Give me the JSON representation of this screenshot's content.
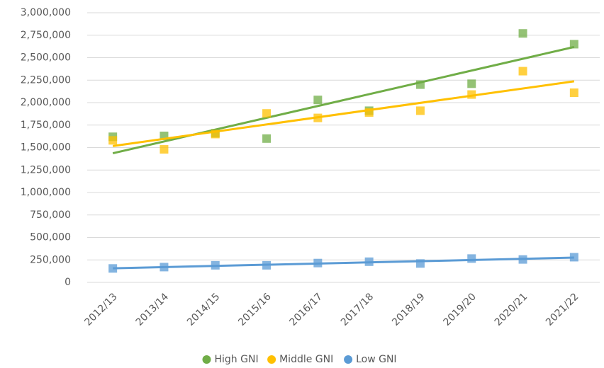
{
  "chart_data": {
    "type": "scatter",
    "categories": [
      "2012/13",
      "2013/14",
      "2014/15",
      "2015/16",
      "2016/17",
      "2017/18",
      "2018/19",
      "2019/20",
      "2020/21",
      "2021/22"
    ],
    "series": [
      {
        "name": "High GNI",
        "color": "#70ad47",
        "values": [
          1620000,
          1630000,
          1660000,
          1600000,
          2030000,
          1910000,
          2200000,
          2210000,
          2770000,
          2650000
        ]
      },
      {
        "name": "Middle GNI",
        "color": "#ffc000",
        "values": [
          1580000,
          1480000,
          1650000,
          1880000,
          1830000,
          1890000,
          1910000,
          2090000,
          2350000,
          2110000
        ]
      },
      {
        "name": "Low GNI",
        "color": "#5b9bd5",
        "values": [
          155000,
          170000,
          190000,
          190000,
          215000,
          230000,
          210000,
          265000,
          255000,
          280000
        ]
      }
    ],
    "ylim": [
      0,
      3000000
    ],
    "yticks": [
      0,
      {
        "value": 250000,
        "label": "250,000"
      },
      {
        "value": 500000,
        "label": "500,000"
      },
      {
        "value": 750000,
        "label": "750,000"
      },
      {
        "value": 1000000,
        "label": "1,000,000"
      },
      {
        "value": 1250000,
        "label": "1,250,000"
      },
      {
        "value": 1500000,
        "label": "1,500,000"
      },
      {
        "value": 1750000,
        "label": "1,750,000"
      },
      {
        "value": 2000000,
        "label": "2,000,000"
      },
      {
        "value": 2250000,
        "label": "2,250,000"
      },
      {
        "value": 2500000,
        "label": "2,500,000"
      },
      {
        "value": 2750000,
        "label": "2,750,000"
      },
      {
        "value": 3000000,
        "label": "3,000,000"
      }
    ],
    "grid": true,
    "trendline": true,
    "legend": "bottom"
  }
}
